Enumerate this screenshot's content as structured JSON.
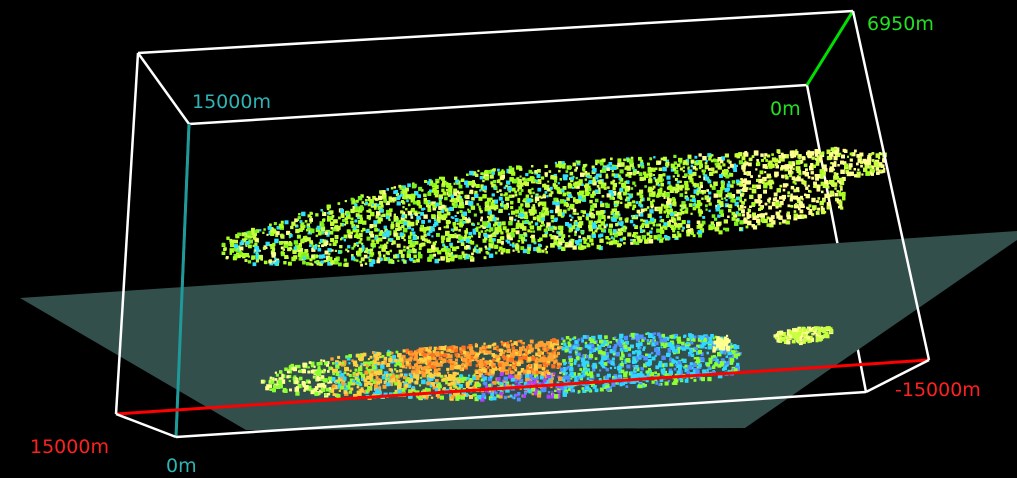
{
  "colors": {
    "background": "#000000",
    "box_edges": "#ffffff",
    "slice_plane": "#324f4c",
    "axis_x": "#ff0000",
    "axis_y": "#00e000",
    "axis_z": "#1f9a9a",
    "label_x": "#ff2020",
    "label_y": "#22e022",
    "label_z": "#2fb3b3",
    "upper_cloud": [
      "#a8ff20",
      "#c8ff40",
      "#ffff90",
      "#7df020",
      "#30e0ff"
    ],
    "lower_cloud": [
      "#ffa030",
      "#ffd040",
      "#ff7020",
      "#8cff30",
      "#30d8ff",
      "#5090ff",
      "#b040ff",
      "#ffff90"
    ]
  },
  "axes": {
    "x_start_label": "15000m",
    "x_end_label": "-15000m",
    "y_start_label": "0m",
    "y_end_label": "6950m",
    "z_start_label": "0m",
    "z_end_label": "15000m"
  }
}
